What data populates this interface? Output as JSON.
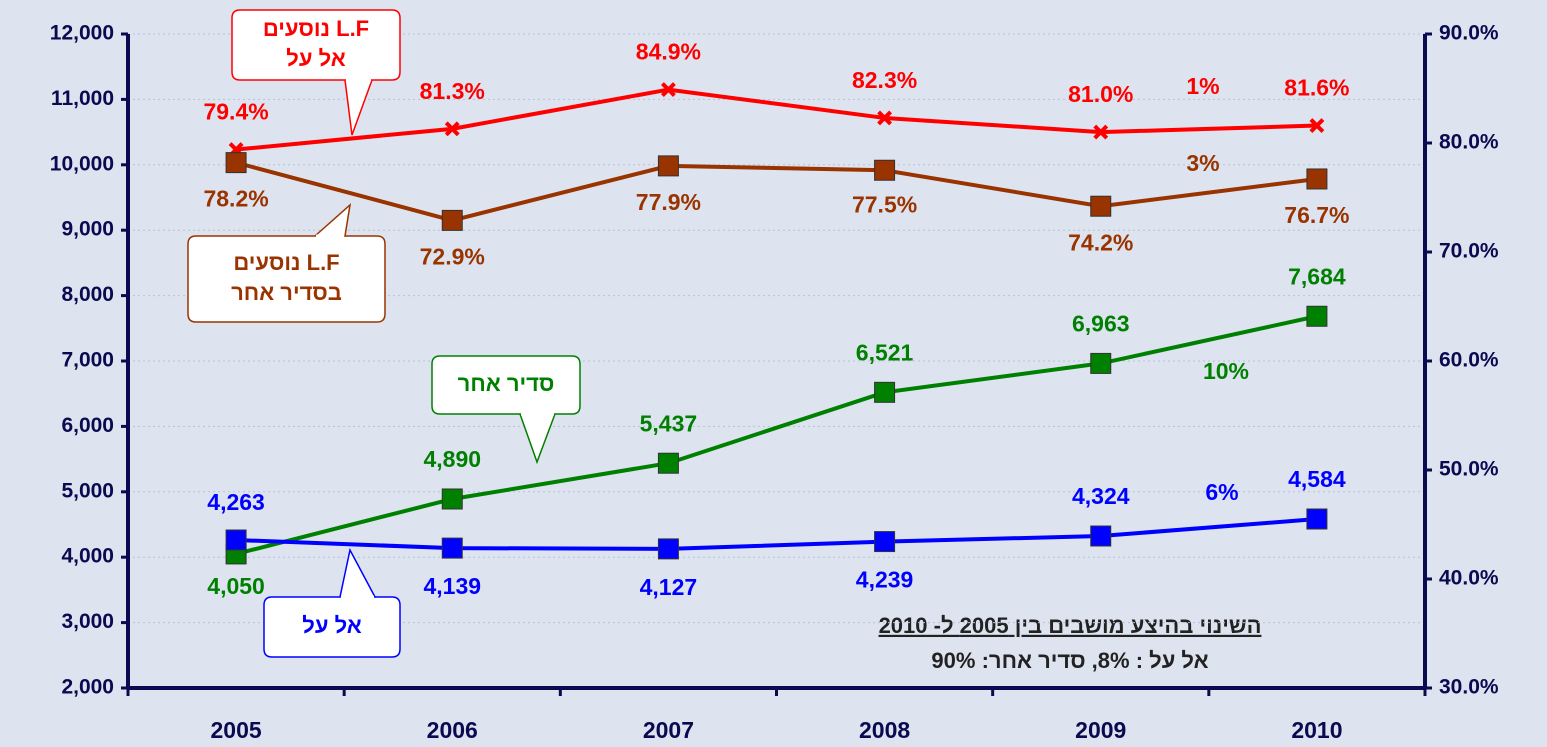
{
  "chart_data": {
    "type": "line",
    "categories": [
      "2005",
      "2006",
      "2007",
      "2008",
      "2009",
      "2010"
    ],
    "ylim": [
      2000,
      12000
    ],
    "yticks": [
      {
        "value": 2000,
        "label": "2,000"
      },
      {
        "value": 3000,
        "label": "3,000"
      },
      {
        "value": 4000,
        "label": "4,000"
      },
      {
        "value": 5000,
        "label": "5,000"
      },
      {
        "value": 6000,
        "label": "6,000"
      },
      {
        "value": 7000,
        "label": "7,000"
      },
      {
        "value": 8000,
        "label": "8,000"
      },
      {
        "value": 9000,
        "label": "9,000"
      },
      {
        "value": 10000,
        "label": "10,000"
      },
      {
        "value": 11000,
        "label": "11,000"
      },
      {
        "value": 12000,
        "label": "12,000"
      }
    ],
    "y2lim": [
      30,
      90
    ],
    "y2ticks": [
      {
        "value": 30,
        "label": "30.0%"
      },
      {
        "value": 40,
        "label": "40.0%"
      },
      {
        "value": 50,
        "label": "50.0%"
      },
      {
        "value": 60,
        "label": "60.0%"
      },
      {
        "value": 70,
        "label": "70.0%"
      },
      {
        "value": 80,
        "label": "80.0%"
      },
      {
        "value": 90,
        "label": "90.0%"
      }
    ],
    "grid": true,
    "series": [
      {
        "label": [
          "L.F נוסעים",
          "אל על"
        ],
        "color": "#ff0000",
        "axis": "y2",
        "marker": "x",
        "values": [
          79.4,
          81.3,
          84.9,
          82.3,
          81.0,
          81.6
        ],
        "value_labels": [
          "79.4%",
          "81.3%",
          "84.9%",
          "82.3%",
          "81.0%",
          "81.6%"
        ]
      },
      {
        "label": [
          "L.F נוסעים",
          "בסדיר אחר"
        ],
        "color": "#993300",
        "axis": "y2",
        "marker": "square",
        "values": [
          78.2,
          72.9,
          77.9,
          77.5,
          74.2,
          76.7
        ],
        "value_labels": [
          "78.2%",
          "72.9%",
          "77.9%",
          "77.5%",
          "74.2%",
          "76.7%"
        ]
      },
      {
        "label": [
          "סדיר אחר"
        ],
        "color": "#008000",
        "marker": "square",
        "values": [
          4050,
          4890,
          5437,
          6521,
          6963,
          7684
        ],
        "value_labels": [
          "4,050",
          "4,890",
          "5,437",
          "6,521",
          "6,963",
          "7,684"
        ]
      },
      {
        "label": [
          "אל על"
        ],
        "color": "#0000ff",
        "marker": "square",
        "values": [
          4263,
          4139,
          4127,
          4239,
          4324,
          4584
        ],
        "value_labels": [
          "4,263",
          "4,139",
          "4,127",
          "4,239",
          "4,324",
          "4,584"
        ]
      }
    ],
    "annotations": [
      "1%",
      "3%",
      "10%",
      "6%"
    ],
    "note": {
      "title": "השינוי בהיצע מושבים בין 2005 ל- 2010",
      "text": "אל על : 8%,  סדיר אחר: 90%"
    }
  }
}
